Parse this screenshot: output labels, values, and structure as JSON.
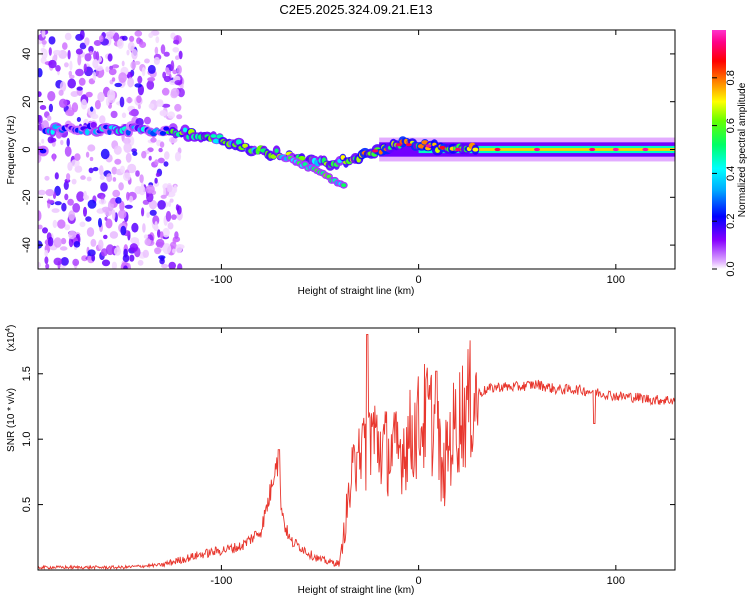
{
  "title": "C2E5.2025.324.09.21.E13",
  "chart_data": [
    {
      "type": "heatmap",
      "name": "spectrogram",
      "xlabel": "Height of straight line (km)",
      "ylabel": "Frequency (Hz)",
      "xlim": [
        -193,
        130
      ],
      "ylim": [
        -50,
        50
      ],
      "xticks": [
        -100,
        0,
        100
      ],
      "yticks": [
        -40,
        -20,
        0,
        20,
        40
      ],
      "colorbar": {
        "label": "Normalized spectral amplitude",
        "range": [
          0,
          1
        ],
        "ticks": [
          "0.0",
          "0.2",
          "0.4",
          "0.6",
          "0.8"
        ],
        "colormap": [
          "#ffffff",
          "#cc66ff",
          "#7700ff",
          "#0000ff",
          "#00aaff",
          "#00ffff",
          "#00ff66",
          "#66ff00",
          "#ffff00",
          "#ff8800",
          "#ff0000",
          "#ff0088",
          "#ff33cc"
        ]
      },
      "features": [
        {
          "desc": "noise region",
          "x_range": [
            -193,
            -128
          ],
          "y_range": [
            -50,
            50
          ],
          "amplitude": 0.15
        },
        {
          "desc": "signal track",
          "points": [
            [
              -190,
              8
            ],
            [
              -160,
              9
            ],
            [
              -140,
              8
            ],
            [
              -120,
              7
            ],
            [
              -100,
              4
            ],
            [
              -85,
              0
            ],
            [
              -70,
              -2
            ],
            [
              -60,
              -4
            ],
            [
              -50,
              -6
            ],
            [
              -40,
              -5
            ],
            [
              -30,
              -3
            ],
            [
              -20,
              0
            ],
            [
              -10,
              2
            ],
            [
              0,
              2
            ],
            [
              10,
              1
            ],
            [
              20,
              0
            ],
            [
              60,
              0
            ],
            [
              130,
              0
            ]
          ]
        },
        {
          "desc": "secondary branch",
          "points": [
            [
              -65,
              -3
            ],
            [
              -55,
              -8
            ],
            [
              -45,
              -12
            ],
            [
              -38,
              -15
            ]
          ]
        }
      ]
    },
    {
      "type": "line",
      "name": "snr",
      "xlabel": "Height of straight line (km)",
      "ylabel": "SNR (10 * v/v)",
      "ymultiplier": "(x10",
      "ymultiplier_exp": "4",
      "xlim": [
        -193,
        130
      ],
      "ylim": [
        0,
        1.85
      ],
      "xticks": [
        -100,
        0,
        100
      ],
      "yticks": [
        "0.5",
        "1.0",
        "1.5"
      ],
      "color": "#e8372e",
      "series": [
        {
          "name": "SNR envelope",
          "x": [
            -193,
            -150,
            -130,
            -120,
            -110,
            -100,
            -90,
            -80,
            -75,
            -72,
            -70,
            -68,
            -65,
            -60,
            -55,
            -50,
            -45,
            -40,
            -35,
            -32,
            -30,
            -28,
            -25,
            -20,
            -15,
            -10,
            -5,
            0,
            5,
            10,
            12,
            15,
            20,
            25,
            30,
            35,
            40,
            50,
            60,
            70,
            80,
            90,
            100,
            110,
            120,
            130
          ],
          "y": [
            0.02,
            0.02,
            0.04,
            0.08,
            0.12,
            0.15,
            0.18,
            0.3,
            0.6,
            0.9,
            0.55,
            0.35,
            0.22,
            0.18,
            0.12,
            0.08,
            0.06,
            0.05,
            0.6,
            0.8,
            1.05,
            0.85,
            1.1,
            0.95,
            0.9,
            0.9,
            1.0,
            1.1,
            1.2,
            1.0,
            0.65,
            0.95,
            1.15,
            1.25,
            1.35,
            1.38,
            1.4,
            1.4,
            1.42,
            1.38,
            1.38,
            1.36,
            1.33,
            1.32,
            1.3,
            1.3
          ]
        }
      ],
      "spikes": [
        {
          "x": -26,
          "y": 1.8
        },
        {
          "x": -31,
          "y": 0.9
        },
        {
          "x": 9,
          "y": 1.52
        },
        {
          "x": -71,
          "y": 0.92
        },
        {
          "x": 89,
          "y": 1.12
        }
      ]
    }
  ]
}
